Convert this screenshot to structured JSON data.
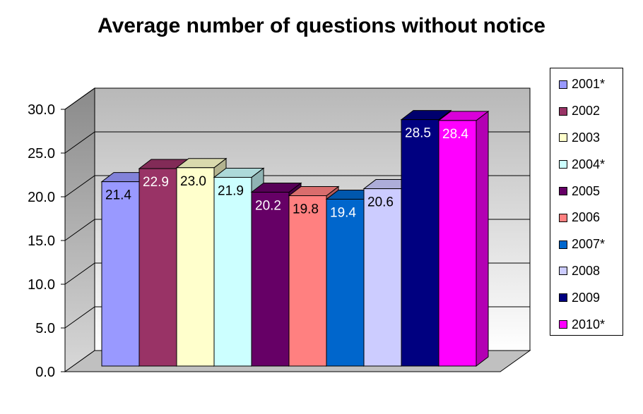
{
  "chart_data": {
    "type": "bar",
    "title": "Average number of questions without notice",
    "xlabel": "",
    "ylabel": "",
    "ylim": [
      0,
      30
    ],
    "yticks": [
      "0.0",
      "5.0",
      "10.0",
      "15.0",
      "20.0",
      "25.0",
      "30.0"
    ],
    "grid": true,
    "legend_position": "right",
    "three_d": true,
    "series": [
      {
        "name": "2001*",
        "value": 21.4,
        "label": "21.4",
        "color": "#9999FF"
      },
      {
        "name": "2002",
        "value": 22.9,
        "label": "22.9",
        "color": "#993366"
      },
      {
        "name": "2003",
        "value": 23.0,
        "label": "23.0",
        "color": "#FFFFCC"
      },
      {
        "name": "2004*",
        "value": 21.9,
        "label": "21.9",
        "color": "#CCFFFF"
      },
      {
        "name": "2005",
        "value": 20.2,
        "label": "20.2",
        "color": "#660066"
      },
      {
        "name": "2006",
        "value": 19.8,
        "label": "19.8",
        "color": "#FF8080"
      },
      {
        "name": "2007*",
        "value": 19.4,
        "label": "19.4",
        "color": "#0066CC"
      },
      {
        "name": "2008",
        "value": 20.6,
        "label": "20.6",
        "color": "#CCCCFF"
      },
      {
        "name": "2009",
        "value": 28.5,
        "label": "28.5",
        "color": "#000080"
      },
      {
        "name": "2010*",
        "value": 28.4,
        "label": "28.4",
        "color": "#FF00FF"
      }
    ]
  }
}
